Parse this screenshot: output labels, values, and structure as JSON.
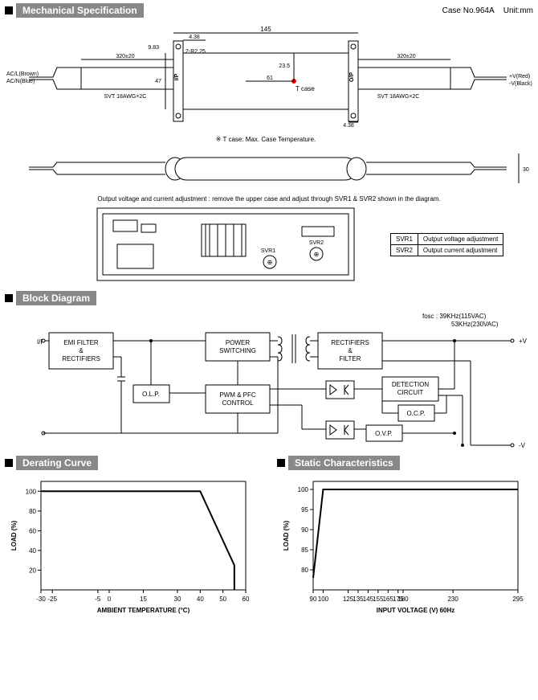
{
  "header": {
    "mech": "Mechanical Specification",
    "block": "Block Diagram",
    "derate": "Derating Curve",
    "static": "Static Characteristics",
    "case": "Case No.964A",
    "unit": "Unit:mm"
  },
  "mech": {
    "len_top": "145",
    "len_top_in": "4.38",
    "h": "47",
    "tcase_x": "61",
    "tcase_y": "23.5",
    "cable_l": "320±20",
    "cable_r": "320±20",
    "wire_spec": "SVT 18AWG×2C",
    "note": "※ T case: Max. Case Temperature.",
    "adj_note": "Output voltage and current adjustment : remove the upper case and adjust through SVR1 & SVR2 shown in the diagram.",
    "svr1": "SVR1",
    "svr2": "SVR2",
    "tcase": "T case",
    "r": "2-R2.25",
    "d983": "9.83",
    "d438": "4.38",
    "d30": "30",
    "ac_l": "AC/L(Brown)",
    "ac_n": "AC/N(Blue)",
    "vpos": "+V(Red)",
    "vneg": "-V(Black)"
  },
  "svr_tbl": {
    "r1c1": "SVR1",
    "r1c2": "Output voltage adjustment",
    "r2c1": "SVR2",
    "r2c2": "Output current adjustment"
  },
  "block": {
    "fosc": "fosc :  39KHz(115VAC)\n          53KHz(230VAC)",
    "ip": "I/P",
    "emi": "EMI FILTER\n&\nRECTIFIERS",
    "olp": "O.L.P.",
    "pwr": "POWER\nSWITCHING",
    "pwm": "PWM & PFC\nCONTROL",
    "rect": "RECTIFIERS\n&\nFILTER",
    "det": "DETECTION\nCIRCUIT",
    "ocp": "O.C.P.",
    "ovp": "O.V.P.",
    "vp": "+V",
    "vn": "-V"
  },
  "derate": {
    "ylabel": "LOAD (%)",
    "xlabel": "AMBIENT TEMPERATURE (°C)",
    "yticks": [
      "20",
      "40",
      "60",
      "80",
      "100"
    ],
    "xticks": [
      "-30",
      "-25",
      "-5",
      "0",
      "15",
      "30",
      "40",
      "50",
      "60"
    ],
    "points": [
      [
        -30,
        100
      ],
      [
        40,
        100
      ],
      [
        55,
        25
      ],
      [
        55,
        0
      ]
    ],
    "xlim": [
      -30,
      60
    ],
    "ylim": [
      0,
      110
    ],
    "line_color": "#000",
    "line_width": 2,
    "bg": "#ffffff",
    "axis_color": "#000"
  },
  "static": {
    "ylabel": "LOAD (%)",
    "xlabel": "INPUT VOLTAGE (V) 60Hz",
    "yticks": [
      "80",
      "85",
      "90",
      "95",
      "100"
    ],
    "xticks": [
      "90",
      "100",
      "125",
      "135",
      "145",
      "155",
      "165",
      "175",
      "180",
      "230",
      "295"
    ],
    "points": [
      [
        90,
        78
      ],
      [
        100,
        100
      ],
      [
        295,
        100
      ]
    ],
    "xlim": [
      90,
      295
    ],
    "ylim": [
      75,
      102
    ],
    "line_color": "#000",
    "line_width": 2,
    "bg": "#ffffff",
    "axis_color": "#000"
  }
}
